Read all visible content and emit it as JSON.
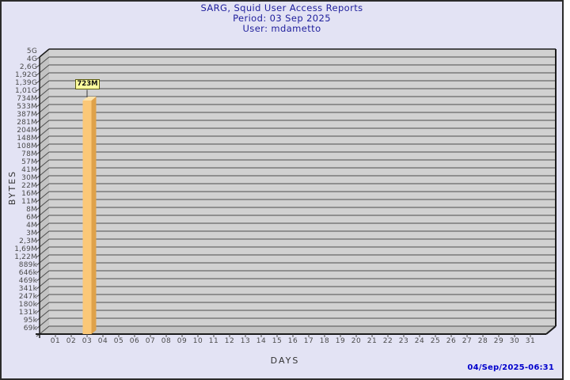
{
  "header": {
    "title": "SARG, Squid User Access Reports",
    "period": "Period: 03 Sep 2025",
    "user": "User: mdametto"
  },
  "footer": {
    "timestamp": "04/Sep/2025-06:31"
  },
  "chart_data": {
    "type": "bar",
    "title": "SARG, Squid User Access Reports",
    "subtitle": [
      "Period: 03 Sep 2025",
      "User: mdametto"
    ],
    "xlabel": "DAYS",
    "ylabel": "BYTES",
    "y_scale": "log",
    "grid": "horizontal",
    "legend": null,
    "y_tick_labels": [
      "5G",
      "4G",
      "2,6G",
      "1,92G",
      "1,39G",
      "1,01G",
      "734M",
      "533M",
      "387M",
      "281M",
      "204M",
      "148M",
      "108M",
      "78M",
      "57M",
      "41M",
      "30M",
      "22M",
      "16M",
      "11M",
      "8M",
      "6M",
      "4M",
      "3M",
      "2,3M",
      "1,69M",
      "1,22M",
      "889k",
      "646k",
      "469k",
      "341k",
      "247k",
      "180k",
      "131k",
      "95k",
      "69k"
    ],
    "categories": [
      "01",
      "02",
      "03",
      "04",
      "05",
      "06",
      "07",
      "08",
      "09",
      "10",
      "11",
      "12",
      "13",
      "14",
      "15",
      "16",
      "17",
      "18",
      "19",
      "20",
      "21",
      "22",
      "23",
      "24",
      "25",
      "26",
      "27",
      "28",
      "29",
      "30",
      "31"
    ],
    "series": [
      {
        "name": "bytes-per-day",
        "values": [
          null,
          null,
          723000000,
          null,
          null,
          null,
          null,
          null,
          null,
          null,
          null,
          null,
          null,
          null,
          null,
          null,
          null,
          null,
          null,
          null,
          null,
          null,
          null,
          null,
          null,
          null,
          null,
          null,
          null,
          null,
          null
        ]
      }
    ],
    "bars": [
      {
        "day": "03",
        "label": "723M",
        "value_bytes": 723000000
      }
    ],
    "timestamp": "04/Sep/2025-06:31",
    "colors": {
      "page_bg": "#e3e3f4",
      "plot_bg": "#d1d1d1",
      "wall_bg": "#c3c3c3",
      "grid_line": "#4d4d4d",
      "axis_line": "#1c1c1c",
      "bar_front": "#fbc878",
      "bar_side": "#dfa24a",
      "bar_top": "#fce3ac",
      "value_label_bg": "#ffff9e",
      "value_label_border": "#5c5c12",
      "title_text": "#20209d",
      "timestamp_text": "#0000cc",
      "tick_text": "#4a4a4a"
    }
  }
}
